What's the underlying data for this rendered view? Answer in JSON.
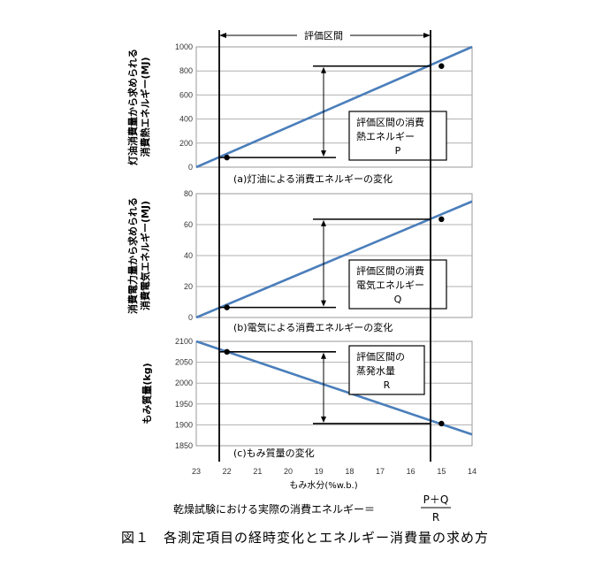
{
  "header": {
    "interval_label": "評価区間"
  },
  "x_axis": {
    "ticks": [
      "23",
      "22",
      "21",
      "20",
      "19",
      "18",
      "17",
      "16",
      "15",
      "14"
    ],
    "range": [
      23,
      14
    ],
    "label": "もみ水分(%w.b.)"
  },
  "formula": {
    "text": "乾燥試験における実際の消費エネルギー＝",
    "numerator": "P＋Q",
    "denominator": "R"
  },
  "figure_caption": "図１　各測定項目の経時変化とエネルギー消費量の求め方",
  "panels": [
    {
      "ylabel_lines": [
        "灯油消費量から求められる",
        "消費熱エネルギー(MJ)"
      ],
      "caption": "(a)灯油による消費エネルギーの変化",
      "box_lines": [
        "評価区間の消費",
        "熱エネルギー",
        "P"
      ]
    },
    {
      "ylabel_lines": [
        "消費電力量から求められる",
        "消費電気エネルギー(MJ)"
      ],
      "caption": "(b)電気による消費エネルギーの変化",
      "box_lines": [
        "評価区間の消費",
        "電気エネルギー",
        "Q"
      ]
    },
    {
      "ylabel_lines": [
        "もみ質量(kg)"
      ],
      "caption": "(c)もみ質量の変化",
      "box_lines": [
        "評価区間の",
        "蒸発水量",
        "R"
      ]
    }
  ],
  "chart_data": [
    {
      "type": "line",
      "title": "(a)灯油による消費エネルギーの変化",
      "xlabel": "もみ水分(%w.b.)",
      "ylabel": "灯油消費量から求められる消費熱エネルギー(MJ)",
      "xlim": [
        23,
        14
      ],
      "ylim": [
        0,
        1000
      ],
      "yticks": [
        0,
        200,
        400,
        600,
        800,
        1000
      ],
      "grid": true,
      "series": [
        {
          "x": [
            23,
            14
          ],
          "y": [
            0,
            1000
          ]
        }
      ],
      "markers": [
        {
          "x": 22,
          "y": 80
        },
        {
          "x": 15,
          "y": 840
        }
      ],
      "color": "#4a7ebb"
    },
    {
      "type": "line",
      "title": "(b)電気による消費エネルギーの変化",
      "xlabel": "もみ水分(%w.b.)",
      "ylabel": "消費電力量から求められる消費電気エネルギー(MJ)",
      "xlim": [
        23,
        14
      ],
      "ylim": [
        0,
        80
      ],
      "yticks": [
        0,
        20,
        40,
        60,
        80
      ],
      "grid": true,
      "series": [
        {
          "x": [
            23,
            14
          ],
          "y": [
            0,
            75
          ]
        }
      ],
      "markers": [
        {
          "x": 22,
          "y": 6.5
        },
        {
          "x": 15,
          "y": 63.5
        }
      ],
      "color": "#4a7ebb"
    },
    {
      "type": "line",
      "title": "(c)もみ質量の変化",
      "xlabel": "もみ水分(%w.b.)",
      "ylabel": "もみ質量(kg)",
      "xlim": [
        23,
        14
      ],
      "ylim": [
        1850,
        2100
      ],
      "yticks": [
        1850,
        1900,
        1950,
        2000,
        2050,
        2100
      ],
      "grid": true,
      "series": [
        {
          "x": [
            23,
            14
          ],
          "y": [
            2100,
            1877
          ]
        }
      ],
      "markers": [
        {
          "x": 22,
          "y": 2075
        },
        {
          "x": 15,
          "y": 1903
        }
      ],
      "color": "#4a7ebb"
    }
  ]
}
